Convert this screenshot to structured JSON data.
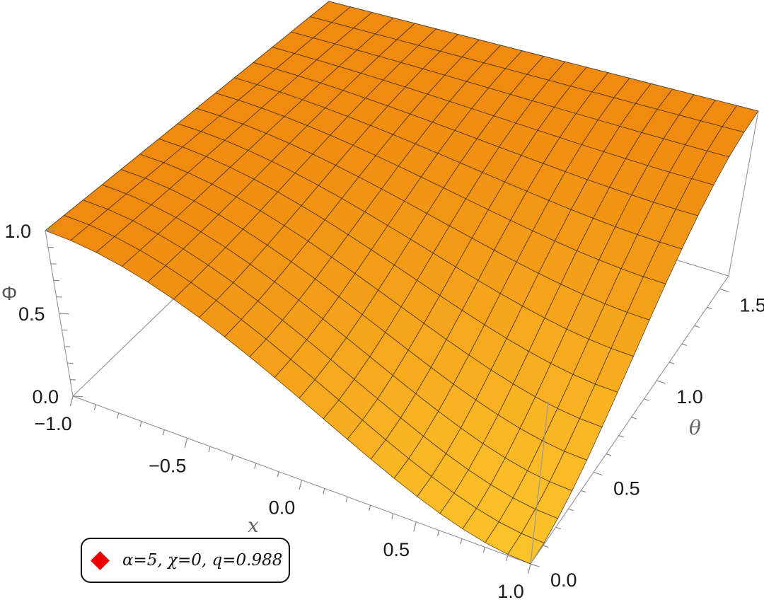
{
  "chart_data": {
    "type": "surface3d",
    "function": "Phi(x, theta)",
    "x_label": "x",
    "y_label": "θ",
    "z_label": "Φ",
    "x_ticks": [
      "−1.0",
      "−0.5",
      "0.0",
      "0.5",
      "1.0"
    ],
    "y_ticks": [
      "0.0",
      "0.5",
      "1.0",
      "1.5"
    ],
    "z_ticks": [
      "0.0",
      "0.5",
      "1.0"
    ],
    "x_range": [
      -1.0,
      1.0
    ],
    "theta_range": [
      0.0,
      1.5708
    ],
    "z_range": [
      0.0,
      1.0
    ],
    "mesh": [
      20,
      15
    ],
    "surface_color_low": "#ffd633",
    "surface_color_high": "#f08a10",
    "legend": {
      "label": "α=5, χ=0, q=0.988",
      "marker_color": "#ee0000",
      "marker_shape": "diamond"
    }
  }
}
